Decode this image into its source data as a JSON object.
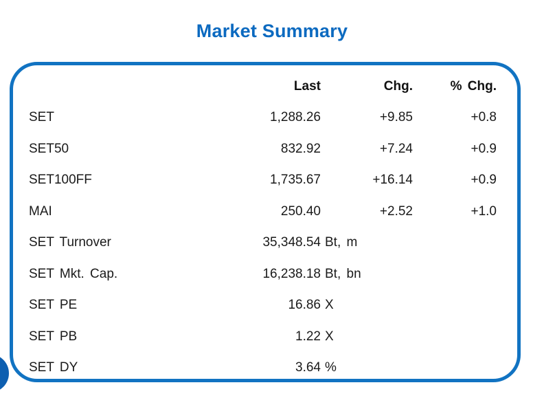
{
  "title": "Market Summary",
  "colors": {
    "accent_border": "#1173C2",
    "title_blue": "#0C6AC0",
    "text": "#1A1A1A",
    "corner_circle": "#0E5FB0"
  },
  "table": {
    "headers": {
      "last": "Last",
      "chg": "Chg.",
      "pct_chg": "% Chg."
    },
    "rows": [
      {
        "label": "SET",
        "last": "1,288.26",
        "unit": "",
        "chg": "+9.85",
        "pct_chg": "+0.8"
      },
      {
        "label": "SET50",
        "last": "832.92",
        "unit": "",
        "chg": "+7.24",
        "pct_chg": "+0.9"
      },
      {
        "label": "SET100FF",
        "last": "1,735.67",
        "unit": "",
        "chg": "+16.14",
        "pct_chg": "+0.9"
      },
      {
        "label": "MAI",
        "last": "250.40",
        "unit": "",
        "chg": "+2.52",
        "pct_chg": "+1.0"
      },
      {
        "label": "SET Turnover",
        "last": "35,348.54",
        "unit": "Bt, m",
        "chg": "",
        "pct_chg": ""
      },
      {
        "label": "SET Mkt. Cap.",
        "last": "16,238.18",
        "unit": "Bt, bn",
        "chg": "",
        "pct_chg": ""
      },
      {
        "label": "SET PE",
        "last": "16.86",
        "unit": "X",
        "chg": "",
        "pct_chg": ""
      },
      {
        "label": "SET PB",
        "last": "1.22",
        "unit": "X",
        "chg": "",
        "pct_chg": ""
      },
      {
        "label": "SET DY",
        "last": "3.64",
        "unit": "%",
        "chg": "",
        "pct_chg": ""
      }
    ]
  },
  "chart_data": {
    "type": "table",
    "title": "Market Summary",
    "columns": [
      "",
      "Last",
      "Chg.",
      "% Chg."
    ],
    "rows": [
      [
        "SET",
        "1,288.26",
        "+9.85",
        "+0.8"
      ],
      [
        "SET50",
        "832.92",
        "+7.24",
        "+0.9"
      ],
      [
        "SET100FF",
        "1,735.67",
        "+16.14",
        "+0.9"
      ],
      [
        "MAI",
        "250.40",
        "+2.52",
        "+1.0"
      ],
      [
        "SET Turnover",
        "35,348.54 Bt, m",
        "",
        ""
      ],
      [
        "SET Mkt. Cap.",
        "16,238.18 Bt, bn",
        "",
        ""
      ],
      [
        "SET PE",
        "16.86 X",
        "",
        ""
      ],
      [
        "SET PB",
        "1.22 X",
        "",
        ""
      ],
      [
        "SET DY",
        "3.64 %",
        "",
        ""
      ]
    ]
  }
}
